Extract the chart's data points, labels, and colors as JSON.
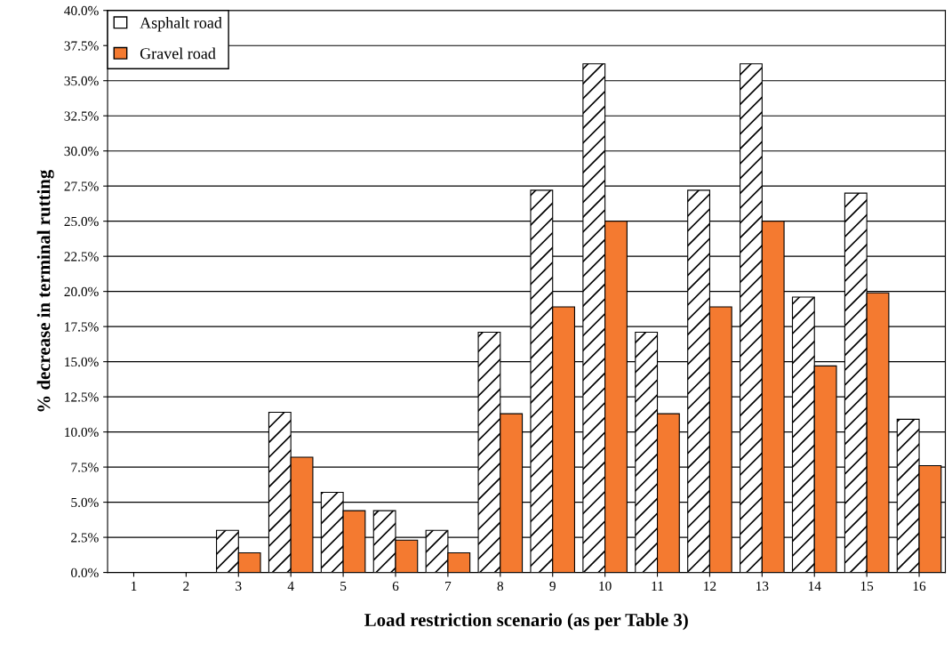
{
  "chart_data": {
    "type": "bar",
    "xlabel": "Load restriction scenario (as per Table 3)",
    "ylabel": "% decrease in terminal rutting",
    "categories": [
      "1",
      "2",
      "3",
      "4",
      "5",
      "6",
      "7",
      "8",
      "9",
      "10",
      "11",
      "12",
      "13",
      "14",
      "15",
      "16"
    ],
    "series": [
      {
        "name": "Asphalt road",
        "color": "#ffffff",
        "values": [
          0,
          0,
          3.0,
          11.4,
          5.7,
          4.4,
          3.0,
          17.1,
          27.2,
          36.2,
          17.1,
          27.2,
          36.2,
          19.6,
          27.0,
          10.9
        ]
      },
      {
        "name": "Gravel road",
        "color": "#f47a30",
        "values": [
          0,
          0,
          1.4,
          8.2,
          4.4,
          2.3,
          1.4,
          11.3,
          18.9,
          25.0,
          11.3,
          18.9,
          25.0,
          14.7,
          19.9,
          7.6
        ]
      }
    ],
    "ylim": [
      0,
      40
    ],
    "yticks": [
      {
        "value": 0,
        "label": "0.0%"
      },
      {
        "value": 2.5,
        "label": "2.5%"
      },
      {
        "value": 5,
        "label": "5.0%"
      },
      {
        "value": 7.5,
        "label": "7.5%"
      },
      {
        "value": 10,
        "label": "10.0%"
      },
      {
        "value": 12.5,
        "label": "12.5%"
      },
      {
        "value": 15,
        "label": "15.0%"
      },
      {
        "value": 17.5,
        "label": "17.5%"
      },
      {
        "value": 20,
        "label": "20.0%"
      },
      {
        "value": 22.5,
        "label": "22.5%"
      },
      {
        "value": 25,
        "label": "25.0%"
      },
      {
        "value": 27.5,
        "label": "27.5%"
      },
      {
        "value": 30,
        "label": "30.0%"
      },
      {
        "value": 32.5,
        "label": "32.5%"
      },
      {
        "value": 35,
        "label": "35.0%"
      },
      {
        "value": 37.5,
        "label": "37.5%"
      },
      {
        "value": 40,
        "label": "40.0%"
      }
    ],
    "grid": "y",
    "legend": "top left"
  }
}
